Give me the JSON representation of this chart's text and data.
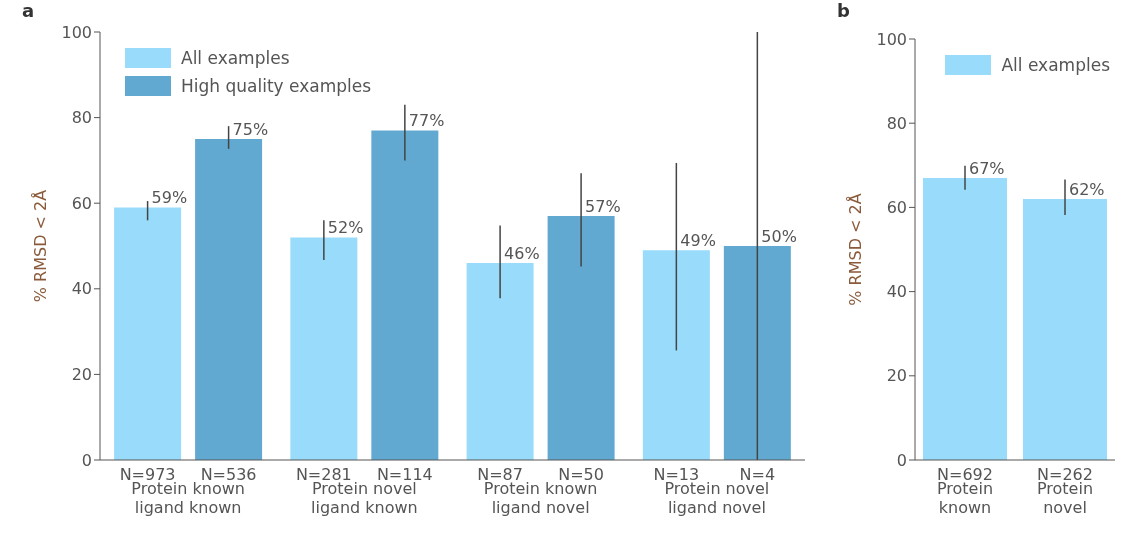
{
  "chart_data": [
    {
      "type": "bar",
      "title": "a",
      "ylabel": "% RMSD < 2Å",
      "categories": [
        "Protein known ligand known",
        "Protein novel ligand known",
        "Protein known ligand novel",
        "Protein novel ligand novel"
      ],
      "ylim": [
        0,
        100
      ],
      "yticks": [
        0,
        20,
        40,
        60,
        80,
        100
      ],
      "legend": "top left",
      "grid": false,
      "series": [
        {
          "name": "All examples",
          "color": "#99dbfa",
          "values": [
            59,
            52,
            46,
            49
          ],
          "value_labels": [
            "59%",
            "52%",
            "46%",
            "49%"
          ],
          "errors": [
            [
              56,
              60.5
            ],
            [
              46.7,
              56
            ],
            [
              37.8,
              54.8
            ],
            [
              25.6,
              69.4
            ]
          ]
        },
        {
          "name": "High quality examples",
          "color": "#62a9d1",
          "values": [
            75,
            77,
            57,
            50
          ],
          "value_labels": [
            "75%",
            "77%",
            "57%",
            "50%"
          ],
          "errors": [
            [
              72.7,
              78
            ],
            [
              70,
              83
            ],
            [
              45.2,
              67
            ],
            [
              0,
              100
            ]
          ]
        }
      ],
      "annotations": [
        "N=973",
        "N=536",
        "N=281",
        "N=114",
        "N=87",
        "N=50",
        "N=13",
        "N=4"
      ]
    },
    {
      "type": "bar",
      "title": "b",
      "ylabel": "% RMSD < 2Å",
      "categories": [
        "Protein known",
        "Protein novel"
      ],
      "ylim": [
        0,
        100
      ],
      "yticks": [
        0,
        20,
        40,
        60,
        80,
        100
      ],
      "legend": "top right",
      "grid": false,
      "series": [
        {
          "name": "All examples",
          "color": "#99dbfa",
          "values": [
            67,
            62
          ],
          "value_labels": [
            "67%",
            "62%"
          ],
          "errors": [
            [
              64.2,
              69.9
            ],
            [
              58.2,
              66.6
            ]
          ]
        }
      ],
      "annotations": [
        "N=692",
        "N=262"
      ]
    }
  ]
}
